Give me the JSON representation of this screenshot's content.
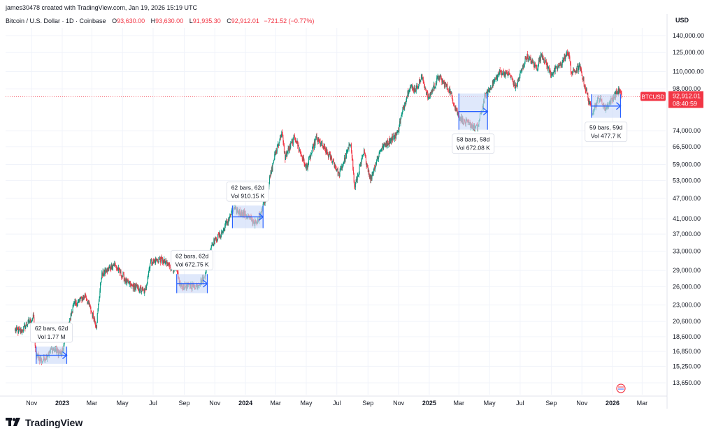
{
  "header": {
    "credit": "james30478 created with TradingView.com, Jan 19, 2026 15:19 UTC",
    "symbol": "Bitcoin / U.S. Dollar · 1D · Coinbase",
    "open_label": "O",
    "open": "93,630.00",
    "high_label": "H",
    "high": "93,630.00",
    "low_label": "L",
    "low": "91,935.30",
    "close_label": "C",
    "close": "92,912.01",
    "change": "−721.52 (−0.77%)",
    "currency": "USD"
  },
  "price_tag": {
    "ticker": "BTCUSD",
    "price": "92,912.01",
    "countdown": "08:40:59"
  },
  "footer": {
    "brand": "TradingView"
  },
  "chart_data": {
    "type": "candlestick",
    "y_scale": "log",
    "ylim": [
      12500,
      150000
    ],
    "last_price": 92912.01,
    "y_ticks": [
      {
        "value": 140000,
        "label": "140,000.00"
      },
      {
        "value": 125000,
        "label": "125,000.00"
      },
      {
        "value": 110000,
        "label": "110,000.00"
      },
      {
        "value": 98000,
        "label": "98,000.00"
      },
      {
        "value": 74000,
        "label": "74,000.00"
      },
      {
        "value": 66500,
        "label": "66,500.00"
      },
      {
        "value": 59000,
        "label": "59,000.00"
      },
      {
        "value": 53000,
        "label": "53,000.00"
      },
      {
        "value": 47000,
        "label": "47,000.00"
      },
      {
        "value": 41000,
        "label": "41,000.00"
      },
      {
        "value": 37000,
        "label": "37,000.00"
      },
      {
        "value": 33000,
        "label": "33,000.00"
      },
      {
        "value": 29000,
        "label": "29,000.00"
      },
      {
        "value": 26000,
        "label": "26,000.00"
      },
      {
        "value": 23000,
        "label": "23,000.00"
      },
      {
        "value": 20600,
        "label": "20,600.00"
      },
      {
        "value": 18600,
        "label": "18,600.00"
      },
      {
        "value": 16850,
        "label": "16,850.00"
      },
      {
        "value": 15250,
        "label": "15,250.00"
      },
      {
        "value": 13650,
        "label": "13,650.00"
      }
    ],
    "x_ticks": [
      {
        "date": "2022-11-01",
        "label": "Nov",
        "bold": false
      },
      {
        "date": "2023-01-01",
        "label": "2023",
        "bold": true
      },
      {
        "date": "2023-03-01",
        "label": "Mar",
        "bold": false
      },
      {
        "date": "2023-05-01",
        "label": "May",
        "bold": false
      },
      {
        "date": "2023-07-01",
        "label": "Jul",
        "bold": false
      },
      {
        "date": "2023-09-01",
        "label": "Sep",
        "bold": false
      },
      {
        "date": "2023-11-01",
        "label": "Nov",
        "bold": false
      },
      {
        "date": "2024-01-01",
        "label": "2024",
        "bold": true
      },
      {
        "date": "2024-03-01",
        "label": "Mar",
        "bold": false
      },
      {
        "date": "2024-05-01",
        "label": "May",
        "bold": false
      },
      {
        "date": "2024-07-01",
        "label": "Jul",
        "bold": false
      },
      {
        "date": "2024-09-01",
        "label": "Sep",
        "bold": false
      },
      {
        "date": "2024-11-01",
        "label": "Nov",
        "bold": false
      },
      {
        "date": "2025-01-01",
        "label": "2025",
        "bold": true
      },
      {
        "date": "2025-03-01",
        "label": "Mar",
        "bold": false
      },
      {
        "date": "2025-05-01",
        "label": "May",
        "bold": false
      },
      {
        "date": "2025-07-01",
        "label": "Jul",
        "bold": false
      },
      {
        "date": "2025-09-01",
        "label": "Sep",
        "bold": false
      },
      {
        "date": "2025-11-01",
        "label": "Nov",
        "bold": false
      },
      {
        "date": "2026-01-01",
        "label": "2026",
        "bold": true
      },
      {
        "date": "2026-03-01",
        "label": "Mar",
        "bold": false
      }
    ],
    "price_path": [
      [
        "2022-09-29",
        19500
      ],
      [
        "2022-10-10",
        19200
      ],
      [
        "2022-10-26",
        20500
      ],
      [
        "2022-11-05",
        21200
      ],
      [
        "2022-11-09",
        16500
      ],
      [
        "2022-11-22",
        15800
      ],
      [
        "2022-12-12",
        17100
      ],
      [
        "2022-12-31",
        16550
      ],
      [
        "2023-01-13",
        19800
      ],
      [
        "2023-01-22",
        22800
      ],
      [
        "2023-02-16",
        24500
      ],
      [
        "2023-03-10",
        20100
      ],
      [
        "2023-03-20",
        28000
      ],
      [
        "2023-04-14",
        30300
      ],
      [
        "2023-05-12",
        26500
      ],
      [
        "2023-06-15",
        25100
      ],
      [
        "2023-06-25",
        30600
      ],
      [
        "2023-07-14",
        31300
      ],
      [
        "2023-08-16",
        29100
      ],
      [
        "2023-08-25",
        26000
      ],
      [
        "2023-09-25",
        26200
      ],
      [
        "2023-10-10",
        27500
      ],
      [
        "2023-10-25",
        34500
      ],
      [
        "2023-11-15",
        37300
      ],
      [
        "2023-12-08",
        43800
      ],
      [
        "2023-12-31",
        42300
      ],
      [
        "2024-01-23",
        39500
      ],
      [
        "2024-02-12",
        48500
      ],
      [
        "2024-02-28",
        62500
      ],
      [
        "2024-03-13",
        73000
      ],
      [
        "2024-03-20",
        62000
      ],
      [
        "2024-04-08",
        71000
      ],
      [
        "2024-05-01",
        57500
      ],
      [
        "2024-05-21",
        70500
      ],
      [
        "2024-06-24",
        60000
      ],
      [
        "2024-07-05",
        55000
      ],
      [
        "2024-07-29",
        68500
      ],
      [
        "2024-08-05",
        50500
      ],
      [
        "2024-08-24",
        64000
      ],
      [
        "2024-09-06",
        53500
      ],
      [
        "2024-09-27",
        65800
      ],
      [
        "2024-10-29",
        72500
      ],
      [
        "2024-11-12",
        88000
      ],
      [
        "2024-11-22",
        99000
      ],
      [
        "2024-12-05",
        98000
      ],
      [
        "2024-12-17",
        106000
      ],
      [
        "2024-12-30",
        92000
      ],
      [
        "2025-01-20",
        106500
      ],
      [
        "2025-02-10",
        97000
      ],
      [
        "2025-02-28",
        82000
      ],
      [
        "2025-03-11",
        78500
      ],
      [
        "2025-04-07",
        75500
      ],
      [
        "2025-04-22",
        93000
      ],
      [
        "2025-05-22",
        110000
      ],
      [
        "2025-06-10",
        108000
      ],
      [
        "2025-06-22",
        99000
      ],
      [
        "2025-07-14",
        122000
      ],
      [
        "2025-08-03",
        113000
      ],
      [
        "2025-08-13",
        124000
      ],
      [
        "2025-08-31",
        108000
      ],
      [
        "2025-09-20",
        115500
      ],
      [
        "2025-10-06",
        126000
      ],
      [
        "2025-10-10",
        109000
      ],
      [
        "2025-10-28",
        113000
      ],
      [
        "2025-11-21",
        84000
      ],
      [
        "2025-12-05",
        92000
      ],
      [
        "2025-12-18",
        86000
      ],
      [
        "2026-01-05",
        93500
      ],
      [
        "2026-01-14",
        97000
      ],
      [
        "2026-01-19",
        92912
      ]
    ],
    "range_annotations": [
      {
        "start": "2022-11-10",
        "end": "2023-01-10",
        "high": 17400,
        "low": 15500,
        "line1": "62 bars, 62d",
        "line2": "Vol 1.77 M",
        "box": "above"
      },
      {
        "start": "2023-08-17",
        "end": "2023-10-17",
        "high": 28300,
        "low": 24900,
        "line1": "62 bars, 62d",
        "line2": "Vol 672.75 K",
        "box": "above"
      },
      {
        "start": "2023-12-06",
        "end": "2024-02-05",
        "high": 44800,
        "low": 38500,
        "line1": "62 bars, 62d",
        "line2": "Vol 910.15 K",
        "box": "above"
      },
      {
        "start": "2025-03-01",
        "end": "2025-04-27",
        "high": 95000,
        "low": 74500,
        "line1": "58 bars, 58d",
        "line2": "Vol 672.08 K",
        "box": "below"
      },
      {
        "start": "2025-11-20",
        "end": "2026-01-17",
        "high": 94500,
        "low": 80700,
        "line1": "59 bars, 59d",
        "line2": "Vol 477.7 K",
        "box": "below"
      }
    ],
    "colors": {
      "up": "#089981",
      "down": "#f23645",
      "range_fill": "#c9d8f8",
      "range_line": "#2962ff",
      "price_line": "#f23645"
    }
  }
}
